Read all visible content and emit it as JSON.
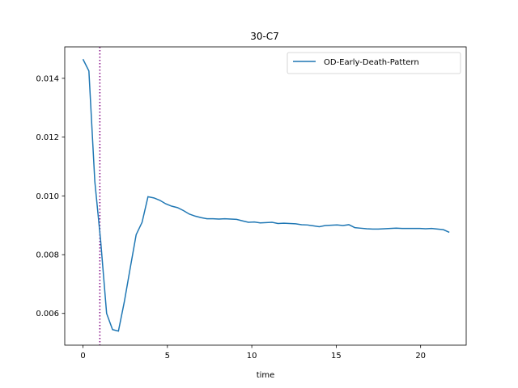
{
  "chart_data": {
    "type": "line",
    "title": "30-C7",
    "xlabel": "time",
    "ylabel": "",
    "xlim": [
      -1.08,
      22.7
    ],
    "ylim": [
      0.00492,
      0.01507
    ],
    "xticks": [
      0,
      5,
      10,
      15,
      20
    ],
    "yticks": [
      0.006,
      0.008,
      0.01,
      0.012,
      0.014
    ],
    "ytick_labels": [
      "0.006",
      "0.008",
      "0.010",
      "0.012",
      "0.014"
    ],
    "xtick_labels": [
      "0",
      "5",
      "10",
      "15",
      "20"
    ],
    "grid": false,
    "legend_position": "top-right",
    "vline": {
      "x": 1.0,
      "color": "#800080",
      "style": "dotted"
    },
    "series": [
      {
        "name": "OD-Early-Death-Pattern",
        "color": "#1f77b4",
        "x": [
          0.0,
          0.35,
          0.7,
          1.05,
          1.4,
          1.75,
          2.1,
          2.45,
          2.8,
          3.15,
          3.5,
          3.85,
          4.2,
          4.55,
          4.9,
          5.25,
          5.6,
          5.95,
          6.3,
          6.65,
          7.0,
          7.35,
          7.7,
          8.05,
          8.4,
          8.75,
          9.1,
          9.45,
          9.8,
          10.15,
          10.5,
          10.85,
          11.2,
          11.55,
          11.9,
          12.25,
          12.6,
          12.95,
          13.3,
          13.65,
          14.0,
          14.35,
          14.7,
          15.05,
          15.4,
          15.75,
          16.1,
          16.45,
          16.8,
          17.15,
          17.5,
          17.85,
          18.2,
          18.55,
          18.9,
          19.25,
          19.6,
          19.95,
          20.3,
          20.65,
          21.0,
          21.35,
          21.7
        ],
        "y": [
          0.01465,
          0.01425,
          0.0105,
          0.00845,
          0.006,
          0.00545,
          0.0054,
          0.0064,
          0.00755,
          0.00868,
          0.0091,
          0.00997,
          0.00993,
          0.00985,
          0.00973,
          0.00965,
          0.0096,
          0.0095,
          0.00938,
          0.00931,
          0.00926,
          0.00922,
          0.00922,
          0.00921,
          0.00922,
          0.00921,
          0.0092,
          0.00915,
          0.0091,
          0.00911,
          0.00908,
          0.00909,
          0.0091,
          0.00906,
          0.00907,
          0.00906,
          0.00905,
          0.00902,
          0.00901,
          0.00898,
          0.00895,
          0.00899,
          0.009,
          0.00901,
          0.00899,
          0.00902,
          0.00892,
          0.0089,
          0.00888,
          0.00887,
          0.00887,
          0.00888,
          0.00889,
          0.0089,
          0.00889,
          0.00889,
          0.00889,
          0.00889,
          0.00888,
          0.00889,
          0.00887,
          0.00885,
          0.00876
        ]
      }
    ]
  }
}
